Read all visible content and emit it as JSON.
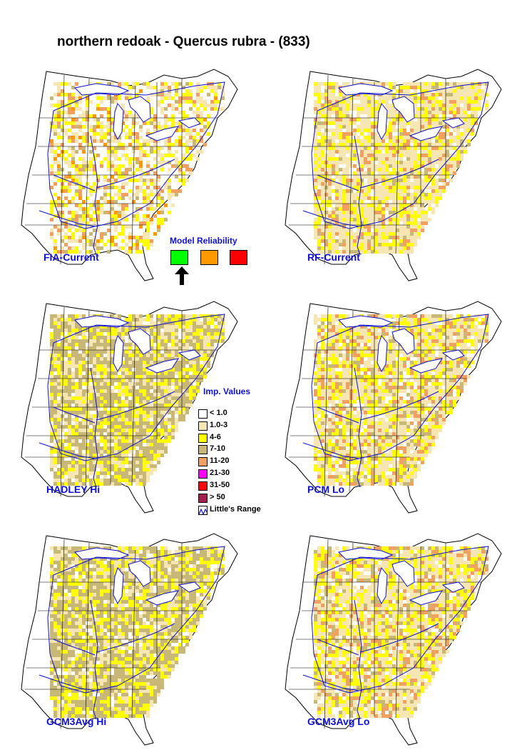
{
  "title": "northern redoak - Quercus rubra - (833)",
  "panels": [
    {
      "label": "FIA-Current",
      "style": "fia"
    },
    {
      "label": "RF-Current",
      "style": "rf"
    },
    {
      "label": "HADLEY Hi",
      "style": "hadley"
    },
    {
      "label": "PCM Lo",
      "style": "pcm"
    },
    {
      "label": "GCM3Avg Hi",
      "style": "gcmhi"
    },
    {
      "label": "GCM3Avg Lo",
      "style": "gcmlo"
    }
  ],
  "model_reliability": {
    "title": "Model Reliability",
    "colors": [
      "#00ff00",
      "#ff9900",
      "#ff0000"
    ],
    "selected_index": 0
  },
  "legend": {
    "title": "Imp. Values",
    "items": [
      {
        "label": "< 1.0",
        "color": "#ffffff"
      },
      {
        "label": "1.0-3",
        "color": "#f5e6b4"
      },
      {
        "label": "4-6",
        "color": "#ffff00"
      },
      {
        "label": "7-10",
        "color": "#c8b878"
      },
      {
        "label": "11-20",
        "color": "#f0a060"
      },
      {
        "label": "21-30",
        "color": "#ff00ff"
      },
      {
        "label": "31-50",
        "color": "#ff0000"
      },
      {
        "label": "> 50",
        "color": "#a02050"
      }
    ],
    "range_label": "Little's Range"
  }
}
